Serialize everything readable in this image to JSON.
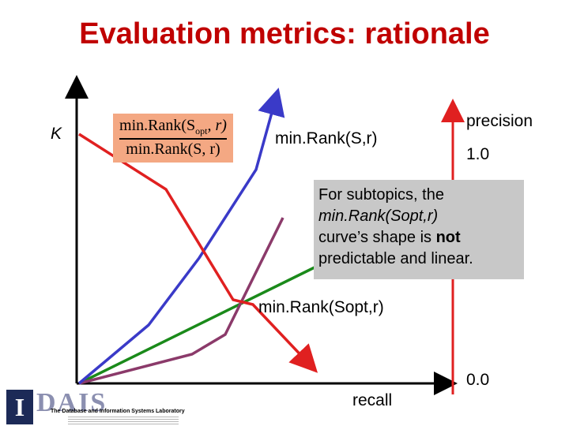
{
  "slide": {
    "title": "Evaluation metrics: rationale"
  },
  "labels": {
    "k": "K",
    "minrank_s": "min.Rank(S,r)",
    "precision": "precision",
    "one": "1.0",
    "zero": "0.0",
    "recall": "recall",
    "minrank_sopt": "min.Rank(Sopt,r)"
  },
  "formula": {
    "numerator": "min.Rank(S",
    "numerator_sub": "opt",
    "numerator_tail": ", r)",
    "denominator": "min.Rank(S, r)"
  },
  "note": {
    "line1": "For subtopics,  the",
    "line2": "min.Rank(Sopt,r)",
    "line3_pre": "curve’s shape is ",
    "line3_bold": "not",
    "line4": "predictable and linear."
  },
  "logo": {
    "mark": "I",
    "word": "DAIS",
    "subtitle": "The Database and Information Systems Laboratory"
  },
  "colors": {
    "title": "#c00000",
    "blue_curve": "#3a3ac8",
    "red_curve": "#e02020",
    "green_curve": "#1a8a1a",
    "purple_curve": "#8b3a6a",
    "formula_bg": "#f4a883",
    "note_bg": "#c8c8c8"
  }
}
